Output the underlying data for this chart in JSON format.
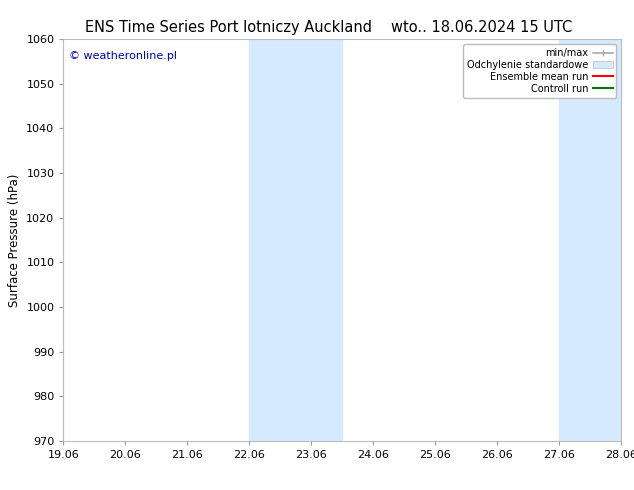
{
  "title_left": "ENS Time Series Port lotniczy Auckland",
  "title_right": "wto.. 18.06.2024 15 UTC",
  "ylabel": "Surface Pressure (hPa)",
  "ylim": [
    970,
    1060
  ],
  "yticks": [
    970,
    980,
    990,
    1000,
    1010,
    1020,
    1030,
    1040,
    1050,
    1060
  ],
  "xtick_labels": [
    "19.06",
    "20.06",
    "21.06",
    "22.06",
    "23.06",
    "24.06",
    "25.06",
    "26.06",
    "27.06",
    "28.06"
  ],
  "shaded_bands": [
    {
      "xmin": 3.0,
      "xmax": 4.5,
      "color": "#d6eaff"
    },
    {
      "xmin": 8.0,
      "xmax": 9.0,
      "color": "#d6eaff"
    }
  ],
  "watermark": "© weatheronline.pl",
  "watermark_color": "#0000cc",
  "legend_items": [
    {
      "label": "min/max",
      "color": "#aaaaaa"
    },
    {
      "label": "Odchylenie standardowe",
      "color": "#d6eaff"
    },
    {
      "label": "Ensemble mean run",
      "color": "#ff0000"
    },
    {
      "label": "Controll run",
      "color": "#007700"
    }
  ],
  "background_color": "#ffffff",
  "plot_bg_color": "#ffffff",
  "title_fontsize": 10.5,
  "axis_label_fontsize": 8.5,
  "tick_fontsize": 8
}
